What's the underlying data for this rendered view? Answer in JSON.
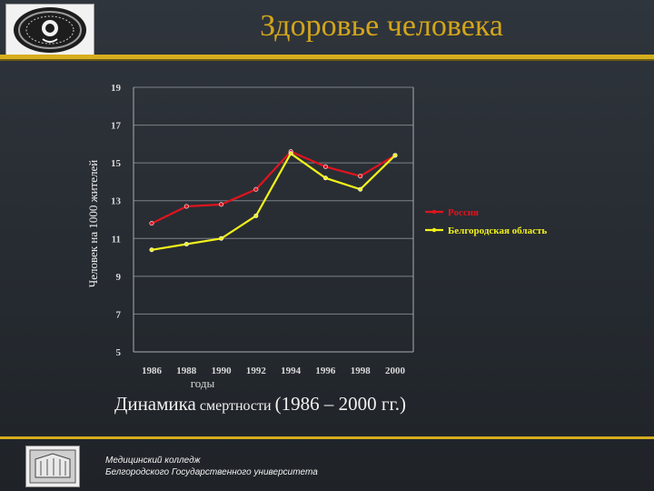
{
  "slide": {
    "title": "Здоровье человека",
    "caption_big_1": "Динамика",
    "caption_small": "смертности",
    "caption_big_2": "(1986 – 2000 гг.)",
    "footer_line1": "Медицинский колледж",
    "footer_line2": "Белгородского Государственного университета"
  },
  "colors": {
    "accent": "#d6ae1e",
    "title": "#d2a51b",
    "russia": "#e0141e",
    "belgorod": "#f2f21a"
  },
  "chart_data": {
    "type": "line",
    "xlabel": "годы",
    "ylabel": "Человек на 1000 жителей",
    "x": [
      1986,
      1988,
      1990,
      1992,
      1994,
      1996,
      1998,
      2000
    ],
    "ylim": [
      5,
      19
    ],
    "yticks": [
      5,
      7,
      9,
      11,
      13,
      15,
      17,
      19
    ],
    "grid": true,
    "legend_position": "right",
    "series": [
      {
        "name": "Россия",
        "color": "#e0141e",
        "values": [
          11.8,
          12.7,
          12.8,
          13.6,
          15.6,
          14.8,
          14.3,
          15.4
        ]
      },
      {
        "name": "Белгородская область",
        "color": "#f2f21a",
        "values": [
          10.4,
          10.7,
          11.0,
          12.2,
          15.5,
          14.2,
          13.6,
          15.4
        ]
      }
    ]
  }
}
